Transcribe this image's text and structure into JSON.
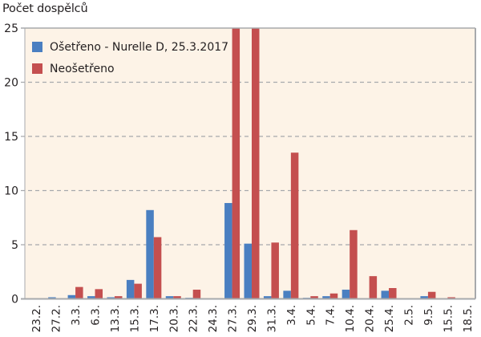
{
  "chart_data": {
    "type": "bar",
    "title": "",
    "ylabel": "Počet dospělců",
    "xlabel": "",
    "ylim": [
      0,
      25
    ],
    "yticks": [
      0,
      5,
      10,
      15,
      20,
      25
    ],
    "grid": "horizontal dashed",
    "legend_position": "top-left inside",
    "categories": [
      "23.2.",
      "27.2.",
      "3.3.",
      "6.3.",
      "13.3.",
      "15.3.",
      "17.3.",
      "20.3.",
      "22.3.",
      "24.3.",
      "27.3.",
      "29.3.",
      "31.3.",
      "3.4.",
      "5.4.",
      "7.4.",
      "10.4.",
      "20.4.",
      "25.4.",
      "2.5.",
      "9.5.",
      "15.5.",
      "18.5."
    ],
    "series": [
      {
        "name": "Ošetřeno - Nurelle D, 25.3.2017",
        "color": "#4a7fc1",
        "values": [
          0,
          0.15,
          0.35,
          0.25,
          0.15,
          1.75,
          8.2,
          0.25,
          0.1,
          0,
          8.85,
          5.1,
          0.25,
          0.75,
          0.1,
          0.25,
          0.85,
          0,
          0.75,
          0,
          0.25,
          0,
          0
        ]
      },
      {
        "name": "Neošetřeno",
        "color": "#c44f4f",
        "values": [
          0,
          0,
          1.1,
          0.9,
          0.25,
          1.4,
          5.7,
          0.25,
          0.85,
          0,
          27,
          27,
          5.2,
          13.5,
          0.25,
          0.5,
          6.35,
          2.1,
          1.0,
          0,
          0.65,
          0.15,
          0
        ]
      }
    ],
    "annotations": [
      "Neošetřeno bars at 27.3. and 29.3. exceed the axis maximum (clipped at 25)"
    ]
  },
  "colors": {
    "plot_background": "#fdf3e7",
    "axis": "#a7a9ac",
    "grid": "#a7a9ac"
  }
}
